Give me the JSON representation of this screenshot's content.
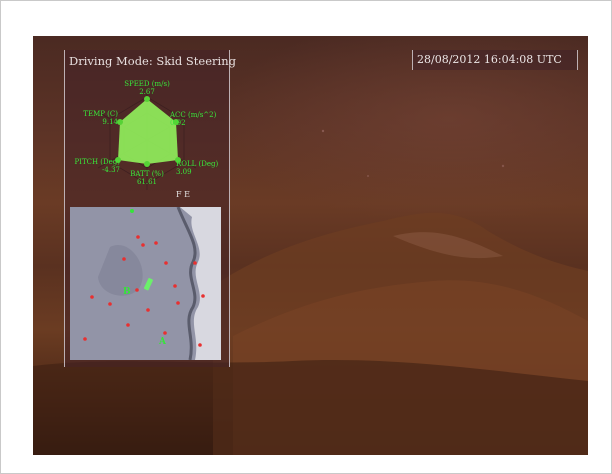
{
  "hud": {
    "driving_mode": "Driving Mode: Skid Steering",
    "clock": "28/08/2012 16:04:08 UTC",
    "heading_label": "F E"
  },
  "radar": {
    "color": "#8ee85a",
    "label_color": "#39e83a",
    "axes": [
      {
        "name": "SPEED (m/s)",
        "value": "2.67"
      },
      {
        "name": "ACC (m/s^2)",
        "value": "0.92"
      },
      {
        "name": "ROLL (Deg)",
        "value": "3.09"
      },
      {
        "name": "BATT (%)",
        "value": "61.61"
      },
      {
        "name": "PITCH (Deg)",
        "value": "-4.37"
      },
      {
        "name": "TEMP (C)",
        "value": "9.14"
      }
    ]
  },
  "map": {
    "waypoints": [
      {
        "label": "B"
      },
      {
        "label": "A"
      }
    ],
    "hazard_color": "#e83030",
    "marker_color": "#35e43a"
  }
}
